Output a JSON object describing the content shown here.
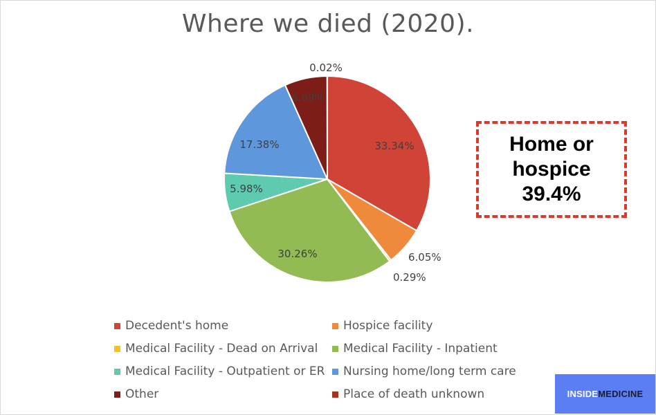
{
  "chart_data": {
    "type": "pie",
    "title": "Where we died (2020).",
    "slices": [
      {
        "label": "Decedent's home",
        "value": 33.34,
        "display": "33.34%",
        "color": "#d04437"
      },
      {
        "label": "Hospice facility",
        "value": 6.05,
        "display": "6.05%",
        "color": "#ef8a3c"
      },
      {
        "label": "Medical Facility - Dead on Arrival",
        "value": 0.29,
        "display": "0.29%",
        "color": "#f2c12e"
      },
      {
        "label": "Medical Facility - Inpatient",
        "value": 30.26,
        "display": "30.26%",
        "color": "#92bb54"
      },
      {
        "label": "Medical Facility - Outpatient or ER",
        "value": 5.98,
        "display": "5.98%",
        "color": "#5ecbae"
      },
      {
        "label": "Nursing home/long term care",
        "value": 17.38,
        "display": "17.38%",
        "color": "#5e97dc"
      },
      {
        "label": "Other",
        "value": 6.69,
        "display": "6.69%",
        "color": "#7d1d17"
      },
      {
        "label": "Place of death unknown",
        "value": 0.02,
        "display": "0.02%",
        "color": "#a3341f"
      }
    ],
    "legend_placement": "bottom"
  },
  "callout": {
    "lines": [
      "Home or",
      "hospice",
      "39.4%"
    ],
    "border_color": "#d93a2b"
  },
  "brand": {
    "part1": "INSIDE",
    "part2": "MEDICINE",
    "background": "#5b7ff2"
  }
}
